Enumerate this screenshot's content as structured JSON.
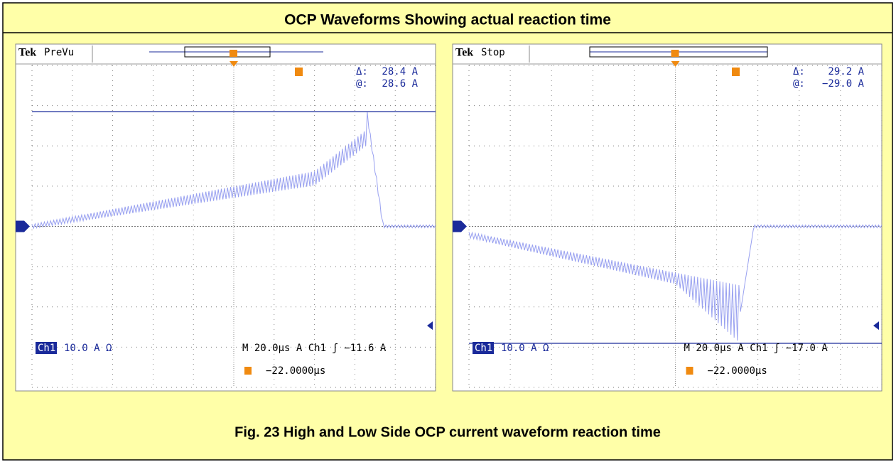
{
  "title": "OCP Waveforms Showing actual reaction time",
  "caption": "Fig. 23  High and Low Side OCP current waveform reaction time",
  "scopes": [
    {
      "brand": "Tek",
      "mode": "PreVu",
      "delta_label": "Δ:",
      "delta": "28.4 A",
      "at_label": "@:",
      "at": "28.6 A",
      "channel": "Ch1",
      "scale": "10.0 A Ω",
      "timebase": "M 20.0µs  A  Ch1  ʃ  −11.6 A",
      "trigger_pos": "−22.0000µs"
    },
    {
      "brand": "Tek",
      "mode": "Stop",
      "delta_label": "Δ:",
      "delta": "29.2 A",
      "at_label": "@:",
      "at": "−29.0 A",
      "channel": "Ch1",
      "scale": "10.0 A Ω",
      "timebase": "M 20.0µs  A  Ch1  ʃ  −17.0 A",
      "trigger_pos": "−22.0000µs"
    }
  ]
}
